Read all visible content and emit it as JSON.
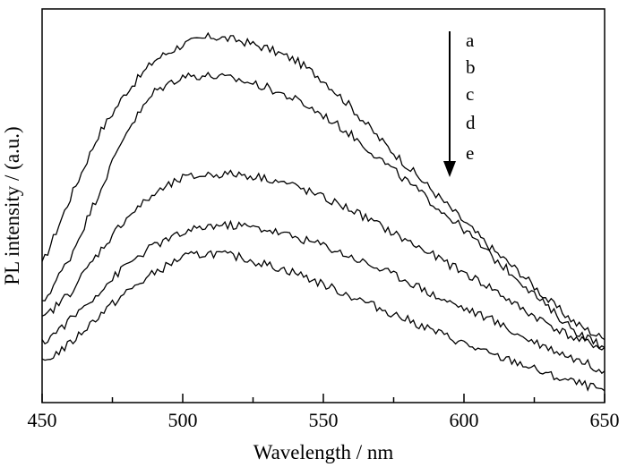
{
  "chart_data": {
    "type": "line",
    "xlabel": "Wavelength / nm",
    "ylabel": "PL intensity / (a.u.)",
    "xlim": [
      450,
      650
    ],
    "ylim": [
      0,
      1
    ],
    "x_ticks": [
      "450",
      "500",
      "550",
      "600",
      "650"
    ],
    "y_tick_labels_shown": false,
    "legend": {
      "placement": "top-right",
      "labels": [
        "a",
        "b",
        "c",
        "d",
        "e"
      ],
      "arrow_direction": "down"
    },
    "series": [
      {
        "name": "a",
        "x": [
          450,
          460,
          470,
          480,
          490,
          500,
          510,
          520,
          530,
          540,
          550,
          560,
          570,
          580,
          590,
          600,
          610,
          620,
          630,
          640,
          650
        ],
        "values": [
          0.35,
          0.52,
          0.68,
          0.79,
          0.87,
          0.91,
          0.93,
          0.92,
          0.9,
          0.87,
          0.82,
          0.75,
          0.67,
          0.6,
          0.53,
          0.46,
          0.39,
          0.33,
          0.26,
          0.2,
          0.16
        ]
      },
      {
        "name": "b",
        "x": [
          450,
          460,
          470,
          480,
          490,
          500,
          510,
          520,
          530,
          540,
          550,
          560,
          570,
          580,
          590,
          600,
          610,
          620,
          630,
          640,
          650
        ],
        "values": [
          0.25,
          0.37,
          0.53,
          0.69,
          0.79,
          0.83,
          0.83,
          0.82,
          0.8,
          0.77,
          0.73,
          0.68,
          0.62,
          0.56,
          0.5,
          0.44,
          0.37,
          0.31,
          0.24,
          0.18,
          0.14
        ]
      },
      {
        "name": "c",
        "x": [
          450,
          460,
          470,
          480,
          490,
          500,
          510,
          520,
          530,
          540,
          550,
          560,
          570,
          580,
          590,
          600,
          610,
          620,
          630,
          640,
          650
        ],
        "values": [
          0.21,
          0.28,
          0.38,
          0.47,
          0.53,
          0.57,
          0.58,
          0.58,
          0.57,
          0.55,
          0.52,
          0.49,
          0.45,
          0.41,
          0.37,
          0.33,
          0.29,
          0.24,
          0.2,
          0.16,
          0.14
        ]
      },
      {
        "name": "d",
        "x": [
          450,
          460,
          470,
          480,
          490,
          500,
          510,
          520,
          530,
          540,
          550,
          560,
          570,
          580,
          590,
          600,
          610,
          620,
          630,
          640,
          650
        ],
        "values": [
          0.15,
          0.21,
          0.28,
          0.35,
          0.4,
          0.43,
          0.45,
          0.45,
          0.44,
          0.42,
          0.4,
          0.37,
          0.34,
          0.31,
          0.27,
          0.24,
          0.21,
          0.17,
          0.14,
          0.11,
          0.08
        ]
      },
      {
        "name": "e",
        "x": [
          450,
          460,
          470,
          480,
          490,
          500,
          510,
          520,
          530,
          540,
          550,
          560,
          570,
          580,
          590,
          600,
          610,
          620,
          630,
          640,
          650
        ],
        "values": [
          0.1,
          0.15,
          0.22,
          0.28,
          0.33,
          0.37,
          0.38,
          0.37,
          0.35,
          0.33,
          0.3,
          0.27,
          0.24,
          0.21,
          0.18,
          0.15,
          0.12,
          0.1,
          0.07,
          0.05,
          0.03
        ]
      }
    ],
    "grid": false,
    "line_color": "#000000"
  }
}
